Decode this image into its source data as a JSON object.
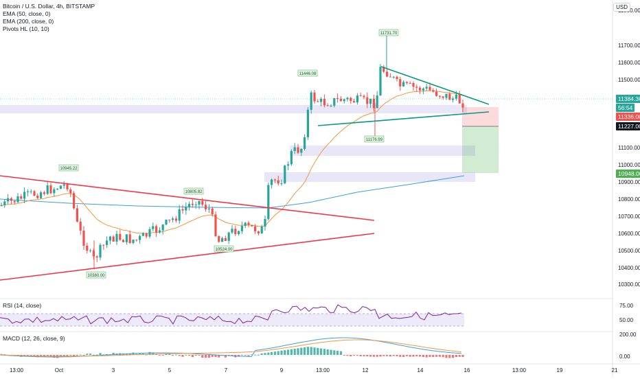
{
  "legend": {
    "symbol": "Bitcoin / U.S. Dollar, 4h, BITSTAMP",
    "ema50": "EMA (50, close, 0)",
    "ema200": "EMA (200, close, 0)",
    "pivots": "Pivots HL (10, 10)"
  },
  "currency": "USD",
  "rsi": {
    "label": "RSI (14, close)",
    "ticks": [
      "75.00",
      "50.00"
    ]
  },
  "macd": {
    "label": "MACD (12, 26, close, 9)",
    "ticks": [
      "200.00",
      "0.00"
    ]
  },
  "price_axis": {
    "ticks": [
      "11700.00",
      "11600.00",
      "11500.00",
      "11100.00",
      "11000.00",
      "10900.00",
      "10800.00",
      "10700.00",
      "10600.00",
      "10500.00",
      "10400.00",
      "10300.00"
    ],
    "current_price": "11384.36",
    "countdown": "56:54",
    "stop_price": "11336.00",
    "entry_price": "11227.00",
    "target_price": "10948.00",
    "top_partial": "11800.00",
    "colors": {
      "up": "#26a69a",
      "down": "#ef5350",
      "entry": "#131722",
      "target": "#4caf50"
    }
  },
  "time_axis": [
    "13:00",
    "Oct",
    "3",
    "5",
    "7",
    "9",
    "13:00",
    "12",
    "14",
    "16",
    "13:00",
    "19",
    "21"
  ],
  "pivot_labels": {
    "p1": "10945.22",
    "p2": "10380.00",
    "p3": "10805.82",
    "p4": "10524.00",
    "p5": "11446.08",
    "p6": "11731.70",
    "p7": "11176.99"
  }
}
